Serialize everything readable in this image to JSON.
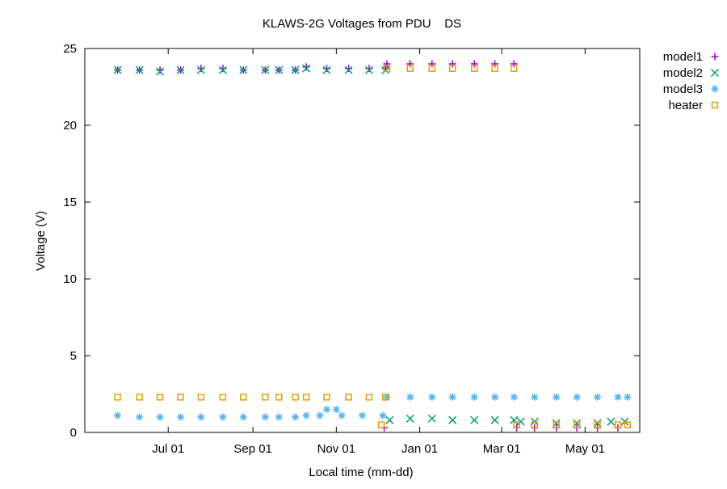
{
  "chart_data": {
    "type": "scatter",
    "title": "KLAWS-2G Voltages from PDU    DS",
    "xlabel": "Local time (mm-dd)",
    "ylabel": "Voltage (V)",
    "x_axis": {
      "type": "date",
      "range": [
        "2023-05-01",
        "2024-06-10"
      ],
      "ticks": [
        {
          "date": "2023-07-01",
          "label": "Jul 01"
        },
        {
          "date": "2023-09-01",
          "label": "Sep 01"
        },
        {
          "date": "2023-11-01",
          "label": "Nov 01"
        },
        {
          "date": "2024-01-01",
          "label": "Jan 01"
        },
        {
          "date": "2024-03-01",
          "label": "Mar 01"
        },
        {
          "date": "2024-05-01",
          "label": "May 01"
        }
      ]
    },
    "y_axis": {
      "range": [
        0,
        25
      ],
      "ticks": [
        0,
        5,
        10,
        15,
        20,
        25
      ]
    },
    "grid": false,
    "legend_position": "outside-top-right",
    "series": [
      {
        "name": "model1",
        "marker": "plus",
        "color": "#9400d3",
        "points": [
          [
            "2023-05-25",
            23.6
          ],
          [
            "2023-06-10",
            23.6
          ],
          [
            "2023-06-25",
            23.6
          ],
          [
            "2023-07-10",
            23.6
          ],
          [
            "2023-07-25",
            23.7
          ],
          [
            "2023-08-10",
            23.7
          ],
          [
            "2023-08-25",
            23.6
          ],
          [
            "2023-09-10",
            23.6
          ],
          [
            "2023-09-20",
            23.6
          ],
          [
            "2023-10-02",
            23.6
          ],
          [
            "2023-10-10",
            23.8
          ],
          [
            "2023-10-25",
            23.7
          ],
          [
            "2023-11-10",
            23.7
          ],
          [
            "2023-11-25",
            23.7
          ],
          [
            "2023-12-07",
            23.7
          ],
          [
            "2023-12-08",
            24.0
          ],
          [
            "2023-12-25",
            24.0
          ],
          [
            "2024-01-10",
            24.0
          ],
          [
            "2024-01-25",
            24.0
          ],
          [
            "2024-02-10",
            24.0
          ],
          [
            "2024-02-25",
            24.0
          ],
          [
            "2024-03-10",
            24.0
          ],
          [
            "2023-12-06",
            0.3
          ],
          [
            "2024-03-12",
            0.3
          ],
          [
            "2024-03-25",
            0.3
          ],
          [
            "2024-04-10",
            0.3
          ],
          [
            "2024-04-25",
            0.3
          ],
          [
            "2024-05-10",
            0.3
          ],
          [
            "2024-05-25",
            0.3
          ]
        ]
      },
      {
        "name": "model2",
        "marker": "cross",
        "color": "#009e73",
        "points": [
          [
            "2023-05-25",
            23.6
          ],
          [
            "2023-06-10",
            23.6
          ],
          [
            "2023-06-25",
            23.5
          ],
          [
            "2023-07-10",
            23.6
          ],
          [
            "2023-07-25",
            23.6
          ],
          [
            "2023-08-10",
            23.6
          ],
          [
            "2023-08-25",
            23.6
          ],
          [
            "2023-09-10",
            23.6
          ],
          [
            "2023-09-20",
            23.6
          ],
          [
            "2023-10-02",
            23.6
          ],
          [
            "2023-10-10",
            23.7
          ],
          [
            "2023-10-25",
            23.6
          ],
          [
            "2023-11-10",
            23.6
          ],
          [
            "2023-11-25",
            23.6
          ],
          [
            "2023-12-07",
            23.6
          ],
          [
            "2023-12-10",
            0.8
          ],
          [
            "2023-12-25",
            0.9
          ],
          [
            "2024-01-10",
            0.9
          ],
          [
            "2024-01-25",
            0.8
          ],
          [
            "2024-02-10",
            0.8
          ],
          [
            "2024-02-25",
            0.8
          ],
          [
            "2024-03-10",
            0.8
          ],
          [
            "2024-03-15",
            0.7
          ],
          [
            "2024-03-25",
            0.7
          ],
          [
            "2024-04-10",
            0.6
          ],
          [
            "2024-04-25",
            0.6
          ],
          [
            "2024-05-10",
            0.6
          ],
          [
            "2024-05-20",
            0.7
          ],
          [
            "2024-05-30",
            0.7
          ]
        ]
      },
      {
        "name": "model3",
        "marker": "star",
        "color": "#56b4e9",
        "points": [
          [
            "2023-05-25",
            1.1
          ],
          [
            "2023-06-10",
            1.0
          ],
          [
            "2023-06-25",
            1.0
          ],
          [
            "2023-07-10",
            1.0
          ],
          [
            "2023-07-25",
            1.0
          ],
          [
            "2023-08-10",
            1.0
          ],
          [
            "2023-08-25",
            1.0
          ],
          [
            "2023-09-10",
            1.0
          ],
          [
            "2023-09-20",
            1.0
          ],
          [
            "2023-10-02",
            1.0
          ],
          [
            "2023-10-10",
            1.1
          ],
          [
            "2023-10-20",
            1.1
          ],
          [
            "2023-10-25",
            1.5
          ],
          [
            "2023-11-01",
            1.5
          ],
          [
            "2023-11-05",
            1.1
          ],
          [
            "2023-11-20",
            1.1
          ],
          [
            "2023-12-05",
            1.1
          ],
          [
            "2023-12-08",
            2.3
          ],
          [
            "2023-12-25",
            2.3
          ],
          [
            "2024-01-10",
            2.3
          ],
          [
            "2024-01-25",
            2.3
          ],
          [
            "2024-02-10",
            2.3
          ],
          [
            "2024-02-25",
            2.3
          ],
          [
            "2024-03-10",
            2.3
          ],
          [
            "2024-03-25",
            2.3
          ],
          [
            "2024-04-10",
            2.3
          ],
          [
            "2024-04-25",
            2.3
          ],
          [
            "2024-05-10",
            2.3
          ],
          [
            "2024-05-25",
            2.3
          ],
          [
            "2024-06-01",
            2.3
          ]
        ]
      },
      {
        "name": "heater",
        "marker": "square",
        "color": "#e69f00",
        "points": [
          [
            "2023-05-25",
            2.3
          ],
          [
            "2023-06-10",
            2.3
          ],
          [
            "2023-06-25",
            2.3
          ],
          [
            "2023-07-10",
            2.3
          ],
          [
            "2023-07-25",
            2.3
          ],
          [
            "2023-08-10",
            2.3
          ],
          [
            "2023-08-25",
            2.3
          ],
          [
            "2023-09-10",
            2.3
          ],
          [
            "2023-09-20",
            2.3
          ],
          [
            "2023-10-02",
            2.3
          ],
          [
            "2023-10-10",
            2.3
          ],
          [
            "2023-10-25",
            2.3
          ],
          [
            "2023-11-10",
            2.3
          ],
          [
            "2023-11-25",
            2.3
          ],
          [
            "2023-12-07",
            2.3
          ],
          [
            "2023-12-04",
            0.5
          ],
          [
            "2023-12-08",
            23.7
          ],
          [
            "2023-12-25",
            23.7
          ],
          [
            "2024-01-10",
            23.7
          ],
          [
            "2024-01-25",
            23.7
          ],
          [
            "2024-02-10",
            23.7
          ],
          [
            "2024-02-25",
            23.7
          ],
          [
            "2024-03-10",
            23.7
          ],
          [
            "2024-03-12",
            0.5
          ],
          [
            "2024-03-25",
            0.5
          ],
          [
            "2024-04-10",
            0.5
          ],
          [
            "2024-04-25",
            0.5
          ],
          [
            "2024-05-10",
            0.5
          ],
          [
            "2024-05-25",
            0.5
          ],
          [
            "2024-06-01",
            0.5
          ]
        ]
      }
    ]
  }
}
